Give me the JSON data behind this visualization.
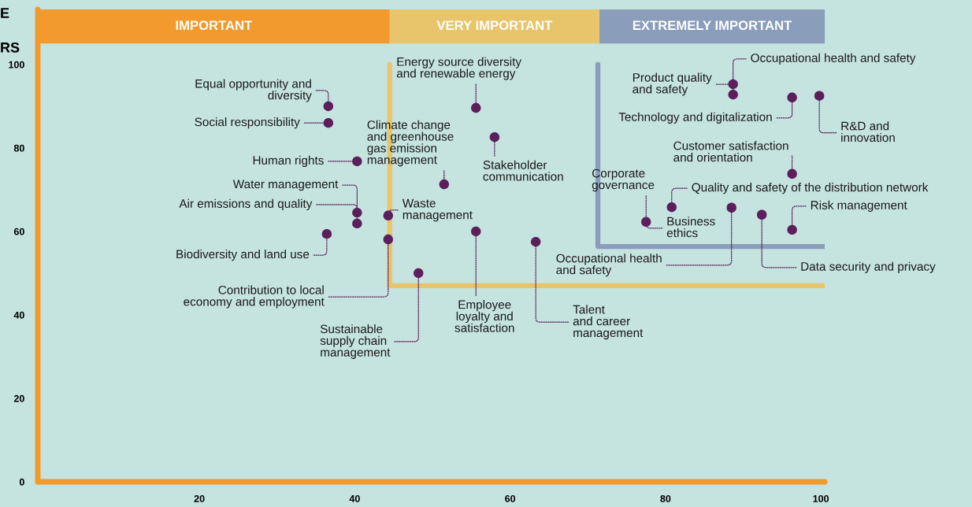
{
  "chart_data": {
    "type": "scatter",
    "x": [
      36.6,
      36.6,
      40.3,
      40.3,
      40.3,
      36.4,
      44.3,
      44.3,
      48.2,
      55.6,
      51.5,
      58.0,
      55.6,
      63.3,
      88.5,
      77.5,
      80.8,
      92.4,
      96.3,
      96.3,
      88.7,
      88.7,
      96.3,
      99.8
    ],
    "values": [
      90.0,
      86.0,
      76.8,
      64.5,
      61.9,
      59.4,
      58.1,
      63.8,
      50.0,
      89.6,
      71.3,
      82.6,
      60.0,
      57.5,
      65.7,
      62.3,
      65.8,
      64.0,
      60.4,
      73.8,
      92.8,
      95.3,
      92.1,
      92.5
    ],
    "color": "#5c1f5c",
    "marker": "circle",
    "xlim": [
      -0.8,
      100.5
    ],
    "ylim": [
      0,
      113.2
    ],
    "xticks": [
      20,
      40,
      60,
      80,
      100
    ],
    "yticks": [
      0,
      20,
      40,
      60,
      80,
      100
    ],
    "grid": false,
    "bands": [
      {
        "axis": "x",
        "from": -0.8,
        "to": 44.5,
        "label": "IMPORTANT",
        "color": "#f29a2e"
      },
      {
        "axis": "x",
        "from": 44.5,
        "to": 71.5,
        "label": "VERY IMPORTANT",
        "color": "#e8c56a"
      },
      {
        "axis": "x",
        "from": 71.5,
        "to": 100.5,
        "label": "EXTREMELY IMPORTANT",
        "color": "#8a9dbb"
      }
    ],
    "ref_lines": [
      {
        "axis": "x",
        "value": 44.5,
        "color": "#e8c56a"
      },
      {
        "axis": "y",
        "value": 47.0,
        "color": "#e8c56a"
      },
      {
        "axis": "x",
        "value": 71.3,
        "color": "#8a9dbb"
      },
      {
        "axis": "y",
        "value": 56.4,
        "color": "#8a9dbb"
      }
    ],
    "annotations": [
      "E",
      "RS",
      {
        "text": "Equal opportunity and\ndiversity",
        "x": 36.6,
        "y": 90.0
      },
      {
        "text": "Social responsibility",
        "x": 36.6,
        "y": 86.0
      },
      {
        "text": "Human rights",
        "x": 40.3,
        "y": 76.8
      },
      {
        "text": "Water management",
        "x": 40.3,
        "y": 64.5
      },
      {
        "text": "Air emissions and quality",
        "x": 40.3,
        "y": 61.9
      },
      {
        "text": "Biodiversity and land use",
        "x": 36.4,
        "y": 59.4
      },
      {
        "text": "Contribution to local\neconomy and employment",
        "x": 44.3,
        "y": 58.1
      },
      {
        "text": "Waste\nmanagement",
        "x": 44.3,
        "y": 63.8
      },
      {
        "text": "Sustainable\nsupply chain\nmanagement",
        "x": 48.2,
        "y": 50.0
      },
      {
        "text": "Energy source diversity\nand renewable energy",
        "x": 55.6,
        "y": 89.6
      },
      {
        "text": "Climate change\nand greenhouse\ngas emission\nmanagement",
        "x": 51.5,
        "y": 71.3
      },
      {
        "text": "Stakeholder\ncommunication",
        "x": 58.0,
        "y": 82.6
      },
      {
        "text": "Employee\nloyalty and\nsatisfaction",
        "x": 55.6,
        "y": 60.0
      },
      {
        "text": "Talent\nand career\nmanagement",
        "x": 63.3,
        "y": 57.5
      },
      {
        "text": "Occupational health\nand safety",
        "x": 88.5,
        "y": 65.7
      },
      {
        "text": "Corporate\ngovernance",
        "x": 77.5,
        "y": 62.3
      },
      {
        "text": "Business\nethics",
        "x": 77.5,
        "y": 62.3
      },
      {
        "text": "Quality and safety of the distribution network",
        "x": 80.8,
        "y": 65.8
      },
      {
        "text": "Data security and privacy",
        "x": 92.4,
        "y": 64.0
      },
      {
        "text": "Risk management",
        "x": 96.3,
        "y": 60.4
      },
      {
        "text": "Customer satisfaction\nand orientation",
        "x": 96.3,
        "y": 73.8
      },
      {
        "text": "Product quality\nand safety",
        "x": 88.7,
        "y": 92.8
      },
      {
        "text": "Occupational health and safety",
        "x": 88.7,
        "y": 95.3
      },
      {
        "text": "Technology and digitalization",
        "x": 96.3,
        "y": 92.1
      },
      {
        "text": "R&D and\ninnovation",
        "x": 99.8,
        "y": 92.5
      }
    ]
  }
}
